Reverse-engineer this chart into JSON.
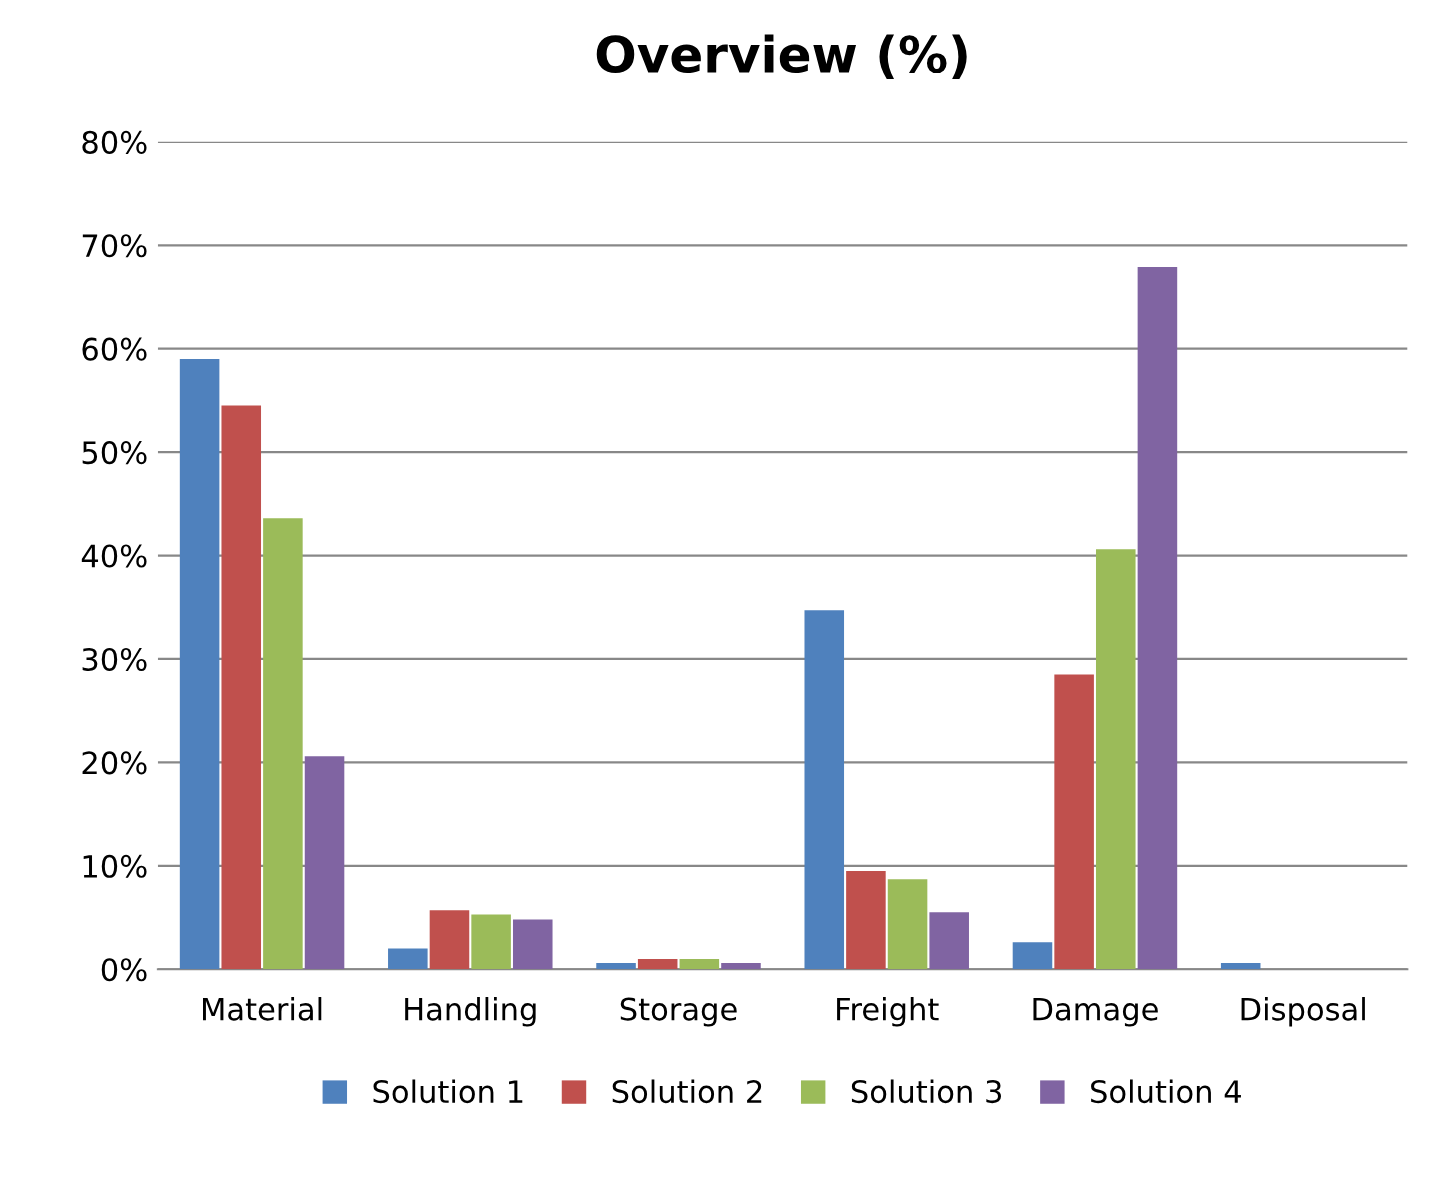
{
  "chart_data": {
    "type": "bar",
    "title": "Overview (%)",
    "categories": [
      "Material",
      "Handling",
      "Storage",
      "Freight",
      "Damage",
      "Disposal"
    ],
    "series": [
      {
        "name": "Solution 1",
        "color": "#4f81bd",
        "values": [
          59.0,
          2.0,
          0.6,
          34.7,
          2.6,
          0.6
        ]
      },
      {
        "name": "Solution 2",
        "color": "#c0504d",
        "values": [
          54.5,
          5.7,
          1.0,
          9.5,
          28.5,
          0
        ]
      },
      {
        "name": "Solution 3",
        "color": "#9bbb59",
        "values": [
          43.6,
          5.3,
          1.0,
          8.7,
          40.6,
          0
        ]
      },
      {
        "name": "Solution 4",
        "color": "#8064a2",
        "values": [
          20.6,
          4.8,
          0.6,
          5.5,
          67.9,
          0
        ]
      }
    ],
    "ylim": [
      0,
      80
    ],
    "yticks": [
      {
        "value": 0,
        "label": "0%"
      },
      {
        "value": 10,
        "label": "10%"
      },
      {
        "value": 20,
        "label": "20%"
      },
      {
        "value": 30,
        "label": "30%"
      },
      {
        "value": 40,
        "label": "40%"
      },
      {
        "value": 50,
        "label": "50%"
      },
      {
        "value": 60,
        "label": "60%"
      },
      {
        "value": 70,
        "label": "70%"
      },
      {
        "value": 80,
        "label": "80%"
      }
    ],
    "grid": "y",
    "legend": "bottom"
  }
}
